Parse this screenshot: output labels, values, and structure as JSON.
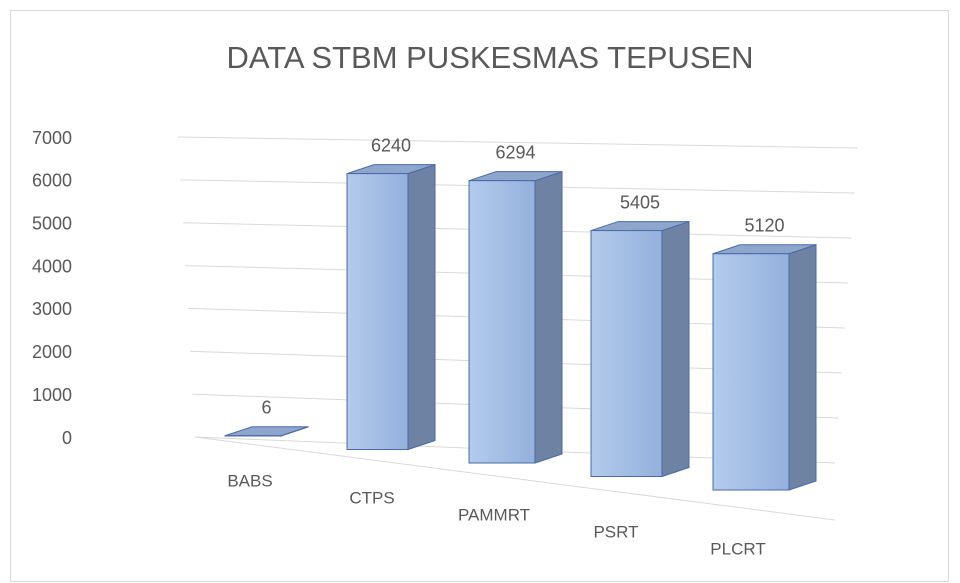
{
  "chart_data": {
    "type": "bar3d",
    "title": "DATA STBM PUSKESMAS TEPUSEN",
    "categories": [
      "BABS",
      "CTPS",
      "PAMMRT",
      "PSRT",
      "PLCRT"
    ],
    "values": [
      6,
      6240,
      6294,
      5405,
      5120
    ],
    "color": "#9fbbe4",
    "ylim": [
      0,
      7000
    ],
    "yticks": [
      0,
      1000,
      2000,
      3000,
      4000,
      5000,
      6000,
      7000
    ],
    "grid": true
  }
}
